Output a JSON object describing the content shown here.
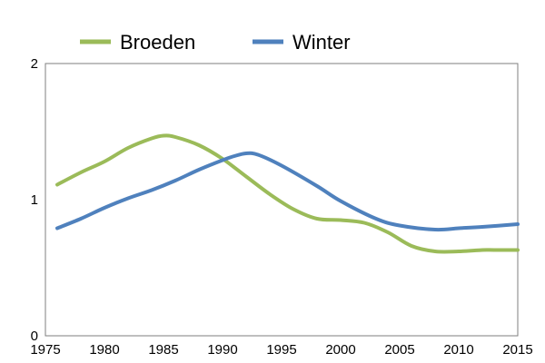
{
  "chart_data": {
    "type": "line",
    "xlim": [
      1975,
      2015
    ],
    "ylim": [
      0,
      2
    ],
    "x_ticks": [
      1975,
      1980,
      1985,
      1990,
      1995,
      2000,
      2005,
      2010,
      2015
    ],
    "y_ticks": [
      0,
      1,
      2
    ],
    "legend_position": "top",
    "grid": false,
    "series": [
      {
        "name": "Broeden",
        "color": "#9BBB59",
        "x": [
          1976,
          1978,
          1980,
          1982,
          1984,
          1985,
          1986,
          1988,
          1990,
          1992,
          1994,
          1996,
          1998,
          2000,
          2002,
          2004,
          2006,
          2008,
          2010,
          2012,
          2013,
          2015
        ],
        "y": [
          1.11,
          1.2,
          1.28,
          1.38,
          1.45,
          1.47,
          1.46,
          1.4,
          1.3,
          1.17,
          1.04,
          0.93,
          0.86,
          0.85,
          0.83,
          0.76,
          0.66,
          0.62,
          0.62,
          0.63,
          0.63,
          0.63
        ]
      },
      {
        "name": "Winter",
        "color": "#4F81BD",
        "x": [
          1976,
          1978,
          1980,
          1982,
          1984,
          1986,
          1988,
          1990,
          1991,
          1992,
          1993,
          1995,
          1998,
          2000,
          2003,
          2005,
          2008,
          2010,
          2012,
          2015
        ],
        "y": [
          0.79,
          0.86,
          0.94,
          1.01,
          1.07,
          1.14,
          1.22,
          1.29,
          1.32,
          1.34,
          1.33,
          1.25,
          1.1,
          0.99,
          0.86,
          0.81,
          0.78,
          0.79,
          0.8,
          0.82
        ]
      }
    ]
  }
}
